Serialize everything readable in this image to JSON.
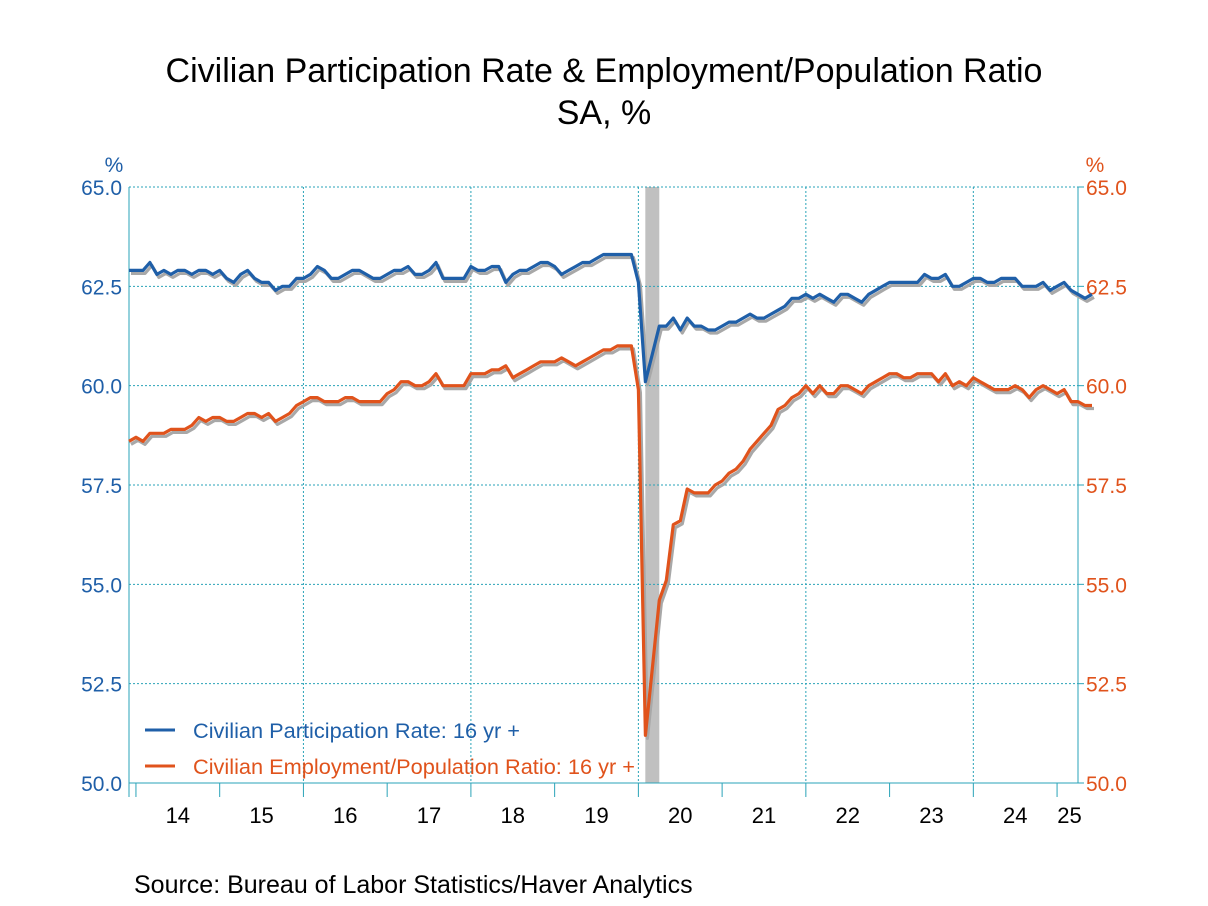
{
  "chart_data": {
    "type": "line",
    "title": "Civilian Participation Rate & Employment/Population Ratio",
    "subtitle": "SA, %",
    "y_left": {
      "unit_label": "%",
      "lim": [
        50.0,
        65.0
      ],
      "ticks": [
        "65.0",
        "62.5",
        "60.0",
        "57.5",
        "55.0",
        "52.5",
        "50.0"
      ],
      "color": "#1f5fa8"
    },
    "y_right": {
      "unit_label": "%",
      "lim": [
        50.0,
        65.0
      ],
      "ticks": [
        "65.0",
        "62.5",
        "60.0",
        "57.5",
        "55.0",
        "52.5",
        "50.0"
      ],
      "color": "#e0531c"
    },
    "x_axis": {
      "start": 2013.917,
      "end": 2025.25,
      "year_labels": [
        "14",
        "15",
        "16",
        "17",
        "18",
        "19",
        "20",
        "21",
        "22",
        "23",
        "24",
        "25"
      ]
    },
    "grid": true,
    "recession": {
      "start": 2020.083,
      "end": 2020.25,
      "color": "#c0c0c0"
    },
    "legend_position": "bottom-left",
    "series": [
      {
        "name": "Civilian Participation Rate: 16 yr +",
        "color": "#1f5fa8",
        "axis": "left",
        "start": 2013.917,
        "step": 0.083333,
        "values": [
          62.9,
          62.9,
          62.9,
          63.1,
          62.8,
          62.9,
          62.8,
          62.9,
          62.9,
          62.8,
          62.9,
          62.9,
          62.8,
          62.9,
          62.7,
          62.6,
          62.8,
          62.9,
          62.7,
          62.6,
          62.6,
          62.4,
          62.5,
          62.5,
          62.7,
          62.7,
          62.8,
          63.0,
          62.9,
          62.7,
          62.7,
          62.8,
          62.9,
          62.9,
          62.8,
          62.7,
          62.7,
          62.8,
          62.9,
          62.9,
          63.0,
          62.8,
          62.8,
          62.9,
          63.1,
          62.7,
          62.7,
          62.7,
          62.7,
          63.0,
          62.9,
          62.9,
          63.0,
          63.0,
          62.6,
          62.8,
          62.9,
          62.9,
          63.0,
          63.1,
          63.1,
          63.0,
          62.8,
          62.9,
          63.0,
          63.1,
          63.1,
          63.2,
          63.3,
          63.3,
          63.3,
          63.3,
          63.3,
          62.6,
          60.1,
          60.8,
          61.5,
          61.5,
          61.7,
          61.4,
          61.7,
          61.5,
          61.5,
          61.4,
          61.4,
          61.5,
          61.6,
          61.6,
          61.7,
          61.8,
          61.7,
          61.7,
          61.8,
          61.9,
          62.0,
          62.2,
          62.2,
          62.3,
          62.2,
          62.3,
          62.2,
          62.1,
          62.3,
          62.3,
          62.2,
          62.1,
          62.3,
          62.4,
          62.5,
          62.6,
          62.6,
          62.6,
          62.6,
          62.6,
          62.8,
          62.7,
          62.7,
          62.8,
          62.5,
          62.5,
          62.6,
          62.7,
          62.7,
          62.6,
          62.6,
          62.7,
          62.7,
          62.7,
          62.5,
          62.5,
          62.5,
          62.6,
          62.4,
          62.5,
          62.6,
          62.4,
          62.3,
          62.2,
          62.3
        ]
      },
      {
        "name": "Civilian Employment/Population Ratio: 16 yr +",
        "color": "#e0531c",
        "axis": "right",
        "start": 2013.917,
        "step": 0.083333,
        "values": [
          58.6,
          58.7,
          58.6,
          58.8,
          58.8,
          58.8,
          58.9,
          58.9,
          58.9,
          59.0,
          59.2,
          59.1,
          59.2,
          59.2,
          59.1,
          59.1,
          59.2,
          59.3,
          59.3,
          59.2,
          59.3,
          59.1,
          59.2,
          59.3,
          59.5,
          59.6,
          59.7,
          59.7,
          59.6,
          59.6,
          59.6,
          59.7,
          59.7,
          59.6,
          59.6,
          59.6,
          59.6,
          59.8,
          59.9,
          60.1,
          60.1,
          60.0,
          60.0,
          60.1,
          60.3,
          60.0,
          60.0,
          60.0,
          60.0,
          60.3,
          60.3,
          60.3,
          60.4,
          60.4,
          60.5,
          60.2,
          60.3,
          60.4,
          60.5,
          60.6,
          60.6,
          60.6,
          60.7,
          60.6,
          60.5,
          60.6,
          60.7,
          60.8,
          60.9,
          60.9,
          61.0,
          61.0,
          61.0,
          59.9,
          51.2,
          52.9,
          54.6,
          55.1,
          56.5,
          56.6,
          57.4,
          57.3,
          57.3,
          57.3,
          57.5,
          57.6,
          57.8,
          57.9,
          58.1,
          58.4,
          58.6,
          58.8,
          59.0,
          59.4,
          59.5,
          59.7,
          59.8,
          60.0,
          59.8,
          60.0,
          59.8,
          59.8,
          60.0,
          60.0,
          59.9,
          59.8,
          60.0,
          60.1,
          60.2,
          60.3,
          60.3,
          60.2,
          60.2,
          60.3,
          60.3,
          60.3,
          60.1,
          60.3,
          60.0,
          60.1,
          60.0,
          60.2,
          60.1,
          60.0,
          59.9,
          59.9,
          59.9,
          60.0,
          59.9,
          59.7,
          59.9,
          60.0,
          59.9,
          59.8,
          59.9,
          59.6,
          59.6,
          59.5,
          59.5
        ]
      }
    ],
    "source": "Source:  Bureau of Labor Statistics/Haver Analytics"
  }
}
